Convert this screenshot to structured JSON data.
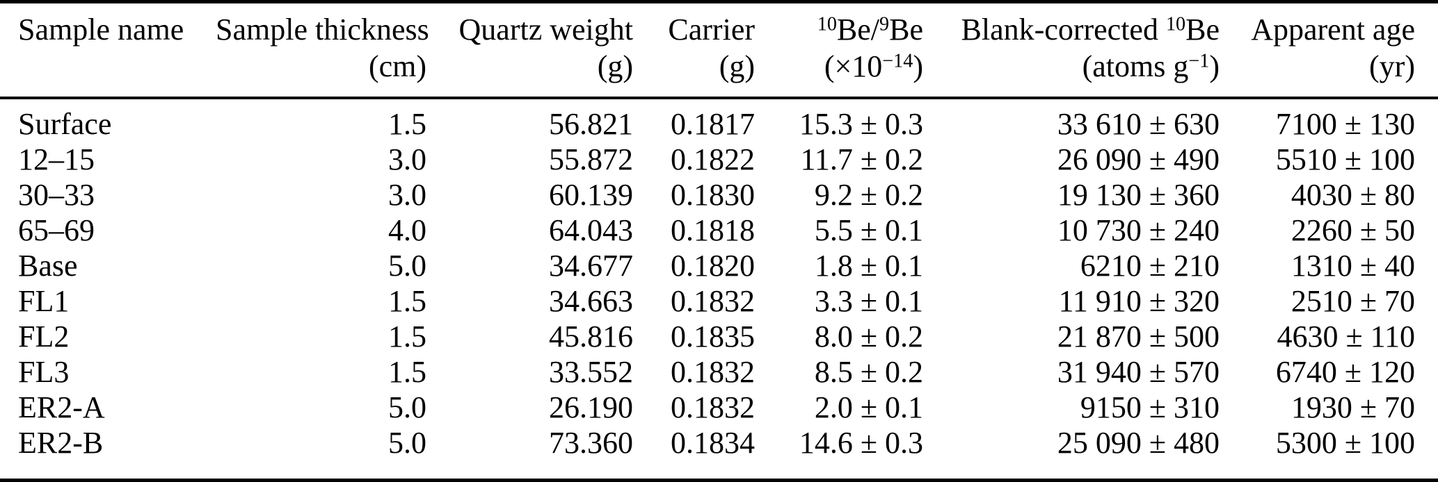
{
  "page": {
    "background_color": "#ffffff",
    "text_color": "#000000",
    "description": "Journal paper data table of cosmogenic 10Be sample measurements"
  },
  "table": {
    "header": {
      "col1": {
        "label": "Sample name",
        "unit": ""
      },
      "col2": {
        "label": "Sample thickness",
        "unit": "(cm)"
      },
      "col3": {
        "label": "Quartz weight",
        "unit": "(g)"
      },
      "col4": {
        "label": "Carrier",
        "unit": "(g)"
      },
      "col5": {
        "sup1": "10",
        "base1": "Be/",
        "sup2": "9",
        "base2": "Be",
        "unit_base1": "(×10",
        "unit_sup": "−14",
        "unit_base2": ")"
      },
      "col6": {
        "base1": "Blank-corrected ",
        "sup1": "10",
        "base2": "Be",
        "unit_base1": "(atoms g",
        "unit_sup": "−1",
        "unit_base2": ")"
      },
      "col7": {
        "label": "Apparent age",
        "unit": "(yr)"
      }
    },
    "rows": [
      [
        "Surface",
        "1.5",
        "56.821",
        "0.1817",
        "15.3 ± 0.3",
        "33 610 ± 630",
        "7100 ± 130"
      ],
      [
        "12–15",
        "3.0",
        "55.872",
        "0.1822",
        "11.7 ± 0.2",
        "26 090 ± 490",
        "5510 ± 100"
      ],
      [
        "30–33",
        "3.0",
        "60.139",
        "0.1830",
        "9.2 ± 0.2",
        "19 130 ± 360",
        "4030 ± 80"
      ],
      [
        "65–69",
        "4.0",
        "64.043",
        "0.1818",
        "5.5 ± 0.1",
        "10 730 ± 240",
        "2260 ± 50"
      ],
      [
        "Base",
        "5.0",
        "34.677",
        "0.1820",
        "1.8 ± 0.1",
        "6210 ± 210",
        "1310 ± 40"
      ],
      [
        "FL1",
        "1.5",
        "34.663",
        "0.1832",
        "3.3 ± 0.1",
        "11 910 ± 320",
        "2510 ± 70"
      ],
      [
        "FL2",
        "1.5",
        "45.816",
        "0.1835",
        "8.0 ± 0.2",
        "21 870 ± 500",
        "4630 ± 110"
      ],
      [
        "FL3",
        "1.5",
        "33.552",
        "0.1832",
        "8.5 ± 0.2",
        "31 940 ± 570",
        "6740 ± 120"
      ],
      [
        "ER2-A",
        "5.0",
        "26.190",
        "0.1832",
        "2.0 ± 0.1",
        "9150 ± 310",
        "1930 ± 70"
      ],
      [
        "ER2-B",
        "5.0",
        "73.360",
        "0.1834",
        "14.6 ± 0.3",
        "25 090 ± 480",
        "5300 ± 100"
      ]
    ]
  }
}
